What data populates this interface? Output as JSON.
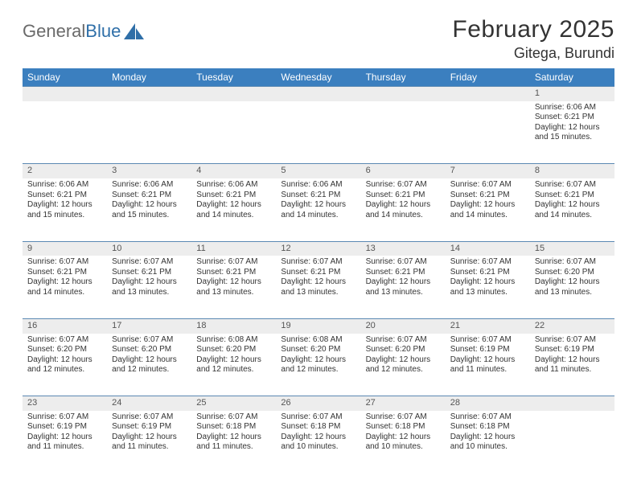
{
  "logo": {
    "text_gray": "General",
    "text_blue": "Blue"
  },
  "title": "February 2025",
  "location": "Gitega, Burundi",
  "colors": {
    "header_bg": "#3b7fbf",
    "header_text": "#ffffff",
    "row_sep": "#5b89b3",
    "daynum_bg": "#ededed",
    "body_text": "#333333",
    "logo_gray": "#6a6a6a",
    "logo_blue": "#2f6fa8"
  },
  "day_labels": [
    "Sunday",
    "Monday",
    "Tuesday",
    "Wednesday",
    "Thursday",
    "Friday",
    "Saturday"
  ],
  "weeks": [
    {
      "nums": [
        "",
        "",
        "",
        "",
        "",
        "",
        "1"
      ],
      "cells": [
        null,
        null,
        null,
        null,
        null,
        null,
        {
          "sunrise": "Sunrise: 6:06 AM",
          "sunset": "Sunset: 6:21 PM",
          "daylight": "Daylight: 12 hours and 15 minutes."
        }
      ]
    },
    {
      "nums": [
        "2",
        "3",
        "4",
        "5",
        "6",
        "7",
        "8"
      ],
      "cells": [
        {
          "sunrise": "Sunrise: 6:06 AM",
          "sunset": "Sunset: 6:21 PM",
          "daylight": "Daylight: 12 hours and 15 minutes."
        },
        {
          "sunrise": "Sunrise: 6:06 AM",
          "sunset": "Sunset: 6:21 PM",
          "daylight": "Daylight: 12 hours and 15 minutes."
        },
        {
          "sunrise": "Sunrise: 6:06 AM",
          "sunset": "Sunset: 6:21 PM",
          "daylight": "Daylight: 12 hours and 14 minutes."
        },
        {
          "sunrise": "Sunrise: 6:06 AM",
          "sunset": "Sunset: 6:21 PM",
          "daylight": "Daylight: 12 hours and 14 minutes."
        },
        {
          "sunrise": "Sunrise: 6:07 AM",
          "sunset": "Sunset: 6:21 PM",
          "daylight": "Daylight: 12 hours and 14 minutes."
        },
        {
          "sunrise": "Sunrise: 6:07 AM",
          "sunset": "Sunset: 6:21 PM",
          "daylight": "Daylight: 12 hours and 14 minutes."
        },
        {
          "sunrise": "Sunrise: 6:07 AM",
          "sunset": "Sunset: 6:21 PM",
          "daylight": "Daylight: 12 hours and 14 minutes."
        }
      ]
    },
    {
      "nums": [
        "9",
        "10",
        "11",
        "12",
        "13",
        "14",
        "15"
      ],
      "cells": [
        {
          "sunrise": "Sunrise: 6:07 AM",
          "sunset": "Sunset: 6:21 PM",
          "daylight": "Daylight: 12 hours and 14 minutes."
        },
        {
          "sunrise": "Sunrise: 6:07 AM",
          "sunset": "Sunset: 6:21 PM",
          "daylight": "Daylight: 12 hours and 13 minutes."
        },
        {
          "sunrise": "Sunrise: 6:07 AM",
          "sunset": "Sunset: 6:21 PM",
          "daylight": "Daylight: 12 hours and 13 minutes."
        },
        {
          "sunrise": "Sunrise: 6:07 AM",
          "sunset": "Sunset: 6:21 PM",
          "daylight": "Daylight: 12 hours and 13 minutes."
        },
        {
          "sunrise": "Sunrise: 6:07 AM",
          "sunset": "Sunset: 6:21 PM",
          "daylight": "Daylight: 12 hours and 13 minutes."
        },
        {
          "sunrise": "Sunrise: 6:07 AM",
          "sunset": "Sunset: 6:21 PM",
          "daylight": "Daylight: 12 hours and 13 minutes."
        },
        {
          "sunrise": "Sunrise: 6:07 AM",
          "sunset": "Sunset: 6:20 PM",
          "daylight": "Daylight: 12 hours and 13 minutes."
        }
      ]
    },
    {
      "nums": [
        "16",
        "17",
        "18",
        "19",
        "20",
        "21",
        "22"
      ],
      "cells": [
        {
          "sunrise": "Sunrise: 6:07 AM",
          "sunset": "Sunset: 6:20 PM",
          "daylight": "Daylight: 12 hours and 12 minutes."
        },
        {
          "sunrise": "Sunrise: 6:07 AM",
          "sunset": "Sunset: 6:20 PM",
          "daylight": "Daylight: 12 hours and 12 minutes."
        },
        {
          "sunrise": "Sunrise: 6:08 AM",
          "sunset": "Sunset: 6:20 PM",
          "daylight": "Daylight: 12 hours and 12 minutes."
        },
        {
          "sunrise": "Sunrise: 6:08 AM",
          "sunset": "Sunset: 6:20 PM",
          "daylight": "Daylight: 12 hours and 12 minutes."
        },
        {
          "sunrise": "Sunrise: 6:07 AM",
          "sunset": "Sunset: 6:20 PM",
          "daylight": "Daylight: 12 hours and 12 minutes."
        },
        {
          "sunrise": "Sunrise: 6:07 AM",
          "sunset": "Sunset: 6:19 PM",
          "daylight": "Daylight: 12 hours and 11 minutes."
        },
        {
          "sunrise": "Sunrise: 6:07 AM",
          "sunset": "Sunset: 6:19 PM",
          "daylight": "Daylight: 12 hours and 11 minutes."
        }
      ]
    },
    {
      "nums": [
        "23",
        "24",
        "25",
        "26",
        "27",
        "28",
        ""
      ],
      "cells": [
        {
          "sunrise": "Sunrise: 6:07 AM",
          "sunset": "Sunset: 6:19 PM",
          "daylight": "Daylight: 12 hours and 11 minutes."
        },
        {
          "sunrise": "Sunrise: 6:07 AM",
          "sunset": "Sunset: 6:19 PM",
          "daylight": "Daylight: 12 hours and 11 minutes."
        },
        {
          "sunrise": "Sunrise: 6:07 AM",
          "sunset": "Sunset: 6:18 PM",
          "daylight": "Daylight: 12 hours and 11 minutes."
        },
        {
          "sunrise": "Sunrise: 6:07 AM",
          "sunset": "Sunset: 6:18 PM",
          "daylight": "Daylight: 12 hours and 10 minutes."
        },
        {
          "sunrise": "Sunrise: 6:07 AM",
          "sunset": "Sunset: 6:18 PM",
          "daylight": "Daylight: 12 hours and 10 minutes."
        },
        {
          "sunrise": "Sunrise: 6:07 AM",
          "sunset": "Sunset: 6:18 PM",
          "daylight": "Daylight: 12 hours and 10 minutes."
        },
        null
      ]
    }
  ]
}
